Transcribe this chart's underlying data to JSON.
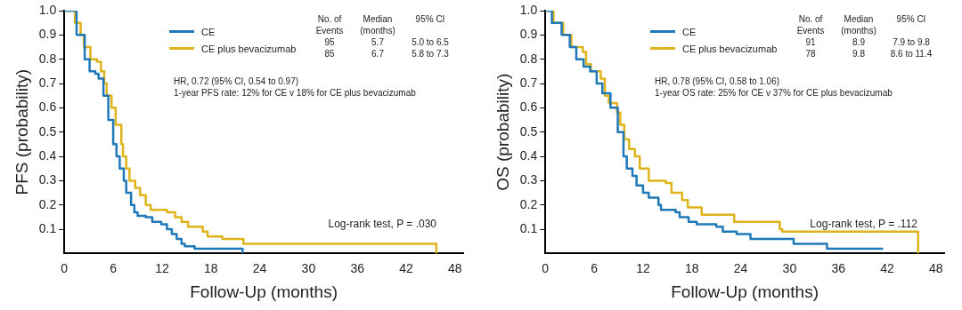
{
  "chart_data": [
    {
      "type": "step",
      "xlabel": "Follow-Up (months)",
      "ylabel": "PFS (probability)",
      "xlim": [
        0,
        49
      ],
      "ylim": [
        0,
        1.0
      ],
      "xticks": [
        0,
        6,
        12,
        18,
        24,
        30,
        36,
        42,
        48
      ],
      "yticks": [
        0.1,
        0.2,
        0.3,
        0.4,
        0.5,
        0.6,
        0.7,
        0.8,
        0.9,
        {
          "value": 1.0,
          "label": "1.0"
        }
      ],
      "grid": false,
      "legend": "top",
      "line_style": "solid",
      "marker": "none",
      "series": [
        {
          "name": "CE",
          "color": "#1f78b8",
          "x": [
            0,
            1.5,
            2.5,
            3.1,
            3.8,
            4.2,
            4.8,
            5.4,
            6.0,
            6.4,
            6.8,
            7.3,
            7.6,
            8.2,
            8.6,
            9.0,
            10.0,
            10.8,
            11.9,
            12.6,
            13.2,
            13.8,
            14.4,
            14.8,
            16.0,
            21.9,
            21.9
          ],
          "values": [
            1.0,
            0.9,
            0.8,
            0.75,
            0.74,
            0.72,
            0.65,
            0.55,
            0.45,
            0.4,
            0.35,
            0.3,
            0.25,
            0.2,
            0.17,
            0.155,
            0.15,
            0.13,
            0.12,
            0.1,
            0.08,
            0.06,
            0.04,
            0.03,
            0.02,
            0.02,
            0.0
          ]
        },
        {
          "name": "CE plus bevacizumab",
          "color": "#dfb41a",
          "x": [
            0,
            1.3,
            2.0,
            2.4,
            3.2,
            4.0,
            4.5,
            4.9,
            5.2,
            5.8,
            6.3,
            7.0,
            7.2,
            7.6,
            8.0,
            8.7,
            9.3,
            10.0,
            10.6,
            12.6,
            13.6,
            14.4,
            15.2,
            17.0,
            17.6,
            19.4,
            22.0,
            45.7,
            45.7
          ],
          "values": [
            1.0,
            0.95,
            0.9,
            0.85,
            0.8,
            0.79,
            0.75,
            0.7,
            0.65,
            0.6,
            0.53,
            0.45,
            0.4,
            0.35,
            0.3,
            0.27,
            0.24,
            0.2,
            0.18,
            0.17,
            0.15,
            0.13,
            0.11,
            0.09,
            0.07,
            0.06,
            0.04,
            0.04,
            0.0
          ]
        }
      ],
      "annotations": [
        "No. of Events",
        "Median (months)",
        "95% CI",
        "95",
        "5.7",
        "5.0 to 6.5",
        "85",
        "6.7",
        "5.8 to 7.3",
        "HR, 0.72 (95% CI, 0.54 to 0.97)",
        "1-year PFS rate: 12% for CE v 18% for CE plus bevacizumab",
        "Log-rank test, P = .030"
      ]
    },
    {
      "type": "step",
      "xlabel": "Follow-Up (months)",
      "ylabel": "OS (probability)",
      "xlim": [
        0,
        49
      ],
      "ylim": [
        0,
        1.0
      ],
      "xticks": [
        0,
        6,
        12,
        18,
        24,
        30,
        36,
        42,
        48
      ],
      "yticks": [
        0.1,
        0.2,
        0.3,
        0.4,
        0.5,
        0.6,
        0.7,
        0.8,
        0.9,
        {
          "value": 1.0,
          "label": "1.0"
        }
      ],
      "grid": false,
      "legend": "top",
      "line_style": "solid",
      "marker": "none",
      "series": [
        {
          "name": "CE",
          "color": "#1f78b8",
          "x": [
            0,
            0.8,
            2.0,
            3.0,
            3.8,
            4.7,
            5.5,
            6.3,
            7.0,
            8.0,
            8.9,
            9.6,
            10.0,
            10.7,
            11.2,
            12.0,
            12.7,
            13.9,
            14.2,
            16.0,
            16.5,
            17.6,
            18.6,
            21.0,
            21.8,
            23.5,
            25.2,
            30.5,
            34.6,
            41.5
          ],
          "values": [
            1.0,
            0.95,
            0.9,
            0.85,
            0.8,
            0.77,
            0.75,
            0.7,
            0.66,
            0.6,
            0.5,
            0.4,
            0.35,
            0.32,
            0.28,
            0.25,
            0.23,
            0.2,
            0.18,
            0.17,
            0.15,
            0.13,
            0.12,
            0.11,
            0.09,
            0.08,
            0.06,
            0.04,
            0.02,
            0.02
          ]
        },
        {
          "name": "CE plus bevacizumab",
          "color": "#dfb41a",
          "x": [
            0,
            1.0,
            2.2,
            3.2,
            4.6,
            5.0,
            5.6,
            6.8,
            7.3,
            7.8,
            8.8,
            9.2,
            9.7,
            10.3,
            11.0,
            11.6,
            12.7,
            14.8,
            15.5,
            16.8,
            17.5,
            19.2,
            23.2,
            28.8,
            29.1,
            45.8,
            45.8
          ],
          "values": [
            1.0,
            0.95,
            0.9,
            0.85,
            0.83,
            0.78,
            0.75,
            0.72,
            0.65,
            0.62,
            0.58,
            0.53,
            0.47,
            0.43,
            0.4,
            0.35,
            0.3,
            0.29,
            0.25,
            0.22,
            0.19,
            0.16,
            0.13,
            0.1,
            0.09,
            0.09,
            0.0
          ]
        }
      ],
      "annotations": [
        "No. of Events",
        "Median (months)",
        "95% CI",
        "91",
        "8.9",
        "7.9 to 9.8",
        "78",
        "9.8",
        "8.6 to 11.4",
        "HR, 0.78 (95% CI, 0.58 to 1.06)",
        "1-year OS rate: 25% for CE v 37% for CE plus bevacizumab",
        "Log-rank test, P = .112"
      ]
    }
  ]
}
